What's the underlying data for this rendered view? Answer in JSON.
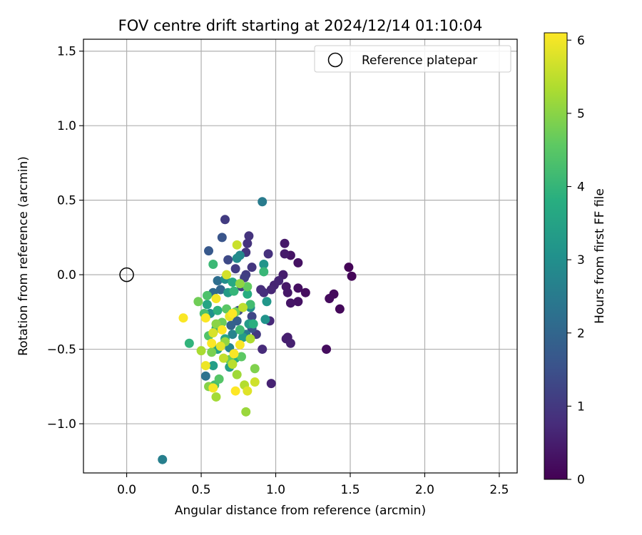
{
  "chart_data": {
    "type": "scatter",
    "title": "FOV centre drift starting at 2024/12/14 01:10:04",
    "xlabel": "Angular distance from reference (arcmin)",
    "ylabel": "Rotation from reference (arcmin)",
    "xlim": [
      -0.29,
      2.62
    ],
    "ylim": [
      -1.33,
      1.58
    ],
    "xticks": [
      0.0,
      0.5,
      1.0,
      1.5,
      2.0,
      2.5
    ],
    "xtick_labels": [
      "0.0",
      "0.5",
      "1.0",
      "1.5",
      "2.0",
      "2.5"
    ],
    "yticks": [
      -1.0,
      -0.5,
      0.0,
      0.5,
      1.0,
      1.5
    ],
    "ytick_labels": [
      "−1.0",
      "−0.5",
      "0.0",
      "0.5",
      "1.0",
      "1.5"
    ],
    "grid": true,
    "legend": {
      "placement": "top-right",
      "entries": [
        "Reference platepar"
      ]
    },
    "reference_point": {
      "x": 0.0,
      "y": 0.0
    },
    "colorbar": {
      "label": "Hours from first FF file",
      "range": [
        0,
        6.1
      ],
      "ticks": [
        0,
        1,
        2,
        3,
        4,
        5,
        6
      ],
      "tick_labels": [
        "0",
        "1",
        "2",
        "3",
        "4",
        "5",
        "6"
      ],
      "colormap": "viridis"
    },
    "points": [
      {
        "x": 1.49,
        "y": 0.05,
        "t": 0.05
      },
      {
        "x": 1.51,
        "y": -0.01,
        "t": 0.08
      },
      {
        "x": 1.43,
        "y": -0.23,
        "t": 0.12
      },
      {
        "x": 1.39,
        "y": -0.13,
        "t": 0.15
      },
      {
        "x": 1.36,
        "y": -0.16,
        "t": 0.18
      },
      {
        "x": 1.34,
        "y": -0.5,
        "t": 0.2
      },
      {
        "x": 1.2,
        "y": -0.12,
        "t": 0.22
      },
      {
        "x": 1.15,
        "y": -0.09,
        "t": 0.25
      },
      {
        "x": 1.15,
        "y": 0.08,
        "t": 0.28
      },
      {
        "x": 1.15,
        "y": -0.18,
        "t": 0.3
      },
      {
        "x": 1.1,
        "y": 0.13,
        "t": 0.32
      },
      {
        "x": 1.1,
        "y": -0.19,
        "t": 0.35
      },
      {
        "x": 1.08,
        "y": -0.12,
        "t": 0.38
      },
      {
        "x": 1.07,
        "y": -0.08,
        "t": 0.4
      },
      {
        "x": 1.06,
        "y": 0.21,
        "t": 0.42
      },
      {
        "x": 1.06,
        "y": 0.14,
        "t": 0.45
      },
      {
        "x": 1.05,
        "y": 0.0,
        "t": 0.48
      },
      {
        "x": 1.08,
        "y": -0.42,
        "t": 0.5
      },
      {
        "x": 1.07,
        "y": -0.43,
        "t": 0.52
      },
      {
        "x": 1.1,
        "y": -0.46,
        "t": 0.55
      },
      {
        "x": 0.97,
        "y": -0.73,
        "t": 0.58
      },
      {
        "x": 0.99,
        "y": -0.07,
        "t": 0.6
      },
      {
        "x": 1.02,
        "y": -0.04,
        "t": 0.62
      },
      {
        "x": 0.97,
        "y": -0.1,
        "t": 0.65
      },
      {
        "x": 0.96,
        "y": -0.31,
        "t": 0.7
      },
      {
        "x": 0.91,
        "y": -0.5,
        "t": 0.75
      },
      {
        "x": 0.9,
        "y": -0.1,
        "t": 0.78
      },
      {
        "x": 0.92,
        "y": -0.12,
        "t": 0.8
      },
      {
        "x": 0.95,
        "y": 0.14,
        "t": 0.85
      },
      {
        "x": 0.81,
        "y": 0.21,
        "t": 0.88
      },
      {
        "x": 0.82,
        "y": 0.26,
        "t": 0.9
      },
      {
        "x": 0.8,
        "y": 0.15,
        "t": 0.92
      },
      {
        "x": 0.84,
        "y": 0.05,
        "t": 0.95
      },
      {
        "x": 0.87,
        "y": -0.4,
        "t": 1.0
      },
      {
        "x": 0.66,
        "y": 0.37,
        "t": 1.05
      },
      {
        "x": 0.73,
        "y": 0.04,
        "t": 1.08
      },
      {
        "x": 0.8,
        "y": 0.0,
        "t": 1.1
      },
      {
        "x": 0.79,
        "y": -0.02,
        "t": 1.15
      },
      {
        "x": 0.77,
        "y": -0.08,
        "t": 1.2
      },
      {
        "x": 0.84,
        "y": -0.28,
        "t": 1.3
      },
      {
        "x": 0.68,
        "y": 0.1,
        "t": 1.35
      },
      {
        "x": 0.75,
        "y": -0.24,
        "t": 1.4
      },
      {
        "x": 0.84,
        "y": -0.36,
        "t": 1.5
      },
      {
        "x": 0.64,
        "y": 0.25,
        "t": 1.6
      },
      {
        "x": 0.55,
        "y": 0.16,
        "t": 1.7
      },
      {
        "x": 0.74,
        "y": -0.31,
        "t": 1.8
      },
      {
        "x": 0.7,
        "y": -0.34,
        "t": 1.9
      },
      {
        "x": 0.63,
        "y": -0.1,
        "t": 2.0
      },
      {
        "x": 0.58,
        "y": -0.12,
        "t": 2.1
      },
      {
        "x": 0.61,
        "y": -0.04,
        "t": 2.2
      },
      {
        "x": 0.53,
        "y": -0.68,
        "t": 2.3
      },
      {
        "x": 0.8,
        "y": -0.4,
        "t": 2.4
      },
      {
        "x": 0.91,
        "y": 0.49,
        "t": 2.5
      },
      {
        "x": 0.24,
        "y": -1.24,
        "t": 2.6
      },
      {
        "x": 0.71,
        "y": -0.4,
        "t": 2.7
      },
      {
        "x": 0.69,
        "y": -0.49,
        "t": 2.75
      },
      {
        "x": 0.76,
        "y": 0.13,
        "t": 2.8
      },
      {
        "x": 0.74,
        "y": 0.11,
        "t": 2.9
      },
      {
        "x": 0.83,
        "y": -0.22,
        "t": 2.95
      },
      {
        "x": 0.66,
        "y": -0.03,
        "t": 3.0
      },
      {
        "x": 0.56,
        "y": -0.26,
        "t": 3.05
      },
      {
        "x": 0.93,
        "y": -0.3,
        "t": 3.1
      },
      {
        "x": 0.92,
        "y": 0.07,
        "t": 3.15
      },
      {
        "x": 0.94,
        "y": -0.18,
        "t": 3.2
      },
      {
        "x": 0.82,
        "y": -0.33,
        "t": 3.25
      },
      {
        "x": 0.78,
        "y": -0.42,
        "t": 3.3
      },
      {
        "x": 0.68,
        "y": -0.12,
        "t": 3.35
      },
      {
        "x": 0.58,
        "y": -0.61,
        "t": 3.4
      },
      {
        "x": 0.69,
        "y": -0.62,
        "t": 3.45
      },
      {
        "x": 0.61,
        "y": -0.5,
        "t": 3.5
      },
      {
        "x": 0.54,
        "y": -0.2,
        "t": 3.55
      },
      {
        "x": 0.66,
        "y": -0.43,
        "t": 3.6
      },
      {
        "x": 0.71,
        "y": -0.05,
        "t": 3.65
      },
      {
        "x": 0.6,
        "y": -0.36,
        "t": 3.7
      },
      {
        "x": 0.81,
        "y": -0.13,
        "t": 3.75
      },
      {
        "x": 0.73,
        "y": -0.56,
        "t": 3.8
      },
      {
        "x": 0.85,
        "y": -0.33,
        "t": 3.85
      },
      {
        "x": 0.61,
        "y": -0.24,
        "t": 3.9
      },
      {
        "x": 0.42,
        "y": -0.46,
        "t": 3.95
      },
      {
        "x": 0.72,
        "y": -0.11,
        "t": 4.0
      },
      {
        "x": 0.92,
        "y": 0.02,
        "t": 4.05
      },
      {
        "x": 0.58,
        "y": 0.07,
        "t": 4.1
      },
      {
        "x": 0.76,
        "y": -0.37,
        "t": 4.15
      },
      {
        "x": 0.83,
        "y": -0.2,
        "t": 4.2
      },
      {
        "x": 0.59,
        "y": -0.74,
        "t": 4.25
      },
      {
        "x": 0.52,
        "y": -0.26,
        "t": 4.3
      },
      {
        "x": 0.54,
        "y": -0.14,
        "t": 4.35
      },
      {
        "x": 0.55,
        "y": -0.41,
        "t": 4.4
      },
      {
        "x": 0.62,
        "y": -0.7,
        "t": 4.45
      },
      {
        "x": 0.67,
        "y": -0.23,
        "t": 4.5
      },
      {
        "x": 0.77,
        "y": -0.55,
        "t": 4.55
      },
      {
        "x": 0.81,
        "y": -0.08,
        "t": 4.6
      },
      {
        "x": 0.69,
        "y": -0.57,
        "t": 4.65
      },
      {
        "x": 0.64,
        "y": -0.32,
        "t": 4.7
      },
      {
        "x": 0.48,
        "y": -0.18,
        "t": 4.75
      },
      {
        "x": 0.73,
        "y": -0.25,
        "t": 4.8
      },
      {
        "x": 0.57,
        "y": -0.52,
        "t": 4.85
      },
      {
        "x": 0.86,
        "y": -0.63,
        "t": 4.9
      },
      {
        "x": 0.55,
        "y": -0.75,
        "t": 4.95
      },
      {
        "x": 0.6,
        "y": -0.33,
        "t": 5.0
      },
      {
        "x": 0.76,
        "y": -0.06,
        "t": 5.05
      },
      {
        "x": 0.66,
        "y": -0.45,
        "t": 5.1
      },
      {
        "x": 0.8,
        "y": -0.92,
        "t": 5.15
      },
      {
        "x": 0.74,
        "y": -0.67,
        "t": 5.2
      },
      {
        "x": 0.6,
        "y": -0.82,
        "t": 5.25
      },
      {
        "x": 0.5,
        "y": -0.51,
        "t": 5.3
      },
      {
        "x": 0.83,
        "y": -0.43,
        "t": 5.35
      },
      {
        "x": 0.79,
        "y": -0.74,
        "t": 5.4
      },
      {
        "x": 0.71,
        "y": -0.6,
        "t": 5.45
      },
      {
        "x": 0.78,
        "y": -0.22,
        "t": 5.5
      },
      {
        "x": 0.65,
        "y": -0.56,
        "t": 5.55
      },
      {
        "x": 0.74,
        "y": 0.2,
        "t": 5.6
      },
      {
        "x": 0.86,
        "y": -0.72,
        "t": 5.65
      },
      {
        "x": 0.67,
        "y": 0.0,
        "t": 5.7
      },
      {
        "x": 0.58,
        "y": -0.39,
        "t": 5.75
      },
      {
        "x": 0.81,
        "y": -0.78,
        "t": 5.8
      },
      {
        "x": 0.63,
        "y": -0.48,
        "t": 5.85
      },
      {
        "x": 0.69,
        "y": -0.28,
        "t": 5.9
      },
      {
        "x": 0.53,
        "y": -0.61,
        "t": 5.95
      },
      {
        "x": 0.6,
        "y": -0.16,
        "t": 6.0
      },
      {
        "x": 0.58,
        "y": -0.76,
        "t": 6.02
      },
      {
        "x": 0.72,
        "y": -0.53,
        "t": 6.05
      },
      {
        "x": 0.76,
        "y": -0.47,
        "t": 6.06
      },
      {
        "x": 0.38,
        "y": -0.29,
        "t": 6.07
      },
      {
        "x": 0.57,
        "y": -0.46,
        "t": 6.08
      },
      {
        "x": 0.53,
        "y": -0.29,
        "t": 6.08
      },
      {
        "x": 0.71,
        "y": -0.26,
        "t": 6.09
      },
      {
        "x": 0.64,
        "y": -0.37,
        "t": 6.1
      },
      {
        "x": 0.73,
        "y": -0.78,
        "t": 6.1
      }
    ]
  }
}
